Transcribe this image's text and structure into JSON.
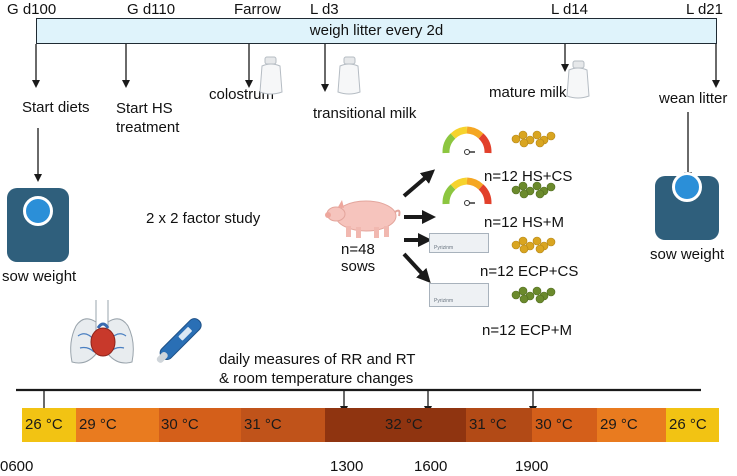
{
  "timeline_labels": {
    "g_d100": "G d100",
    "g_d110": "G d110",
    "farrow": "Farrow",
    "l_d3": "L d3",
    "l_d14": "L d14",
    "l_d21": "L d21"
  },
  "banner_text": "weigh litter every 2d",
  "events": {
    "start_diets": "Start diets",
    "start_hs": "Start HS\ntreatment",
    "colostrum": "colostrum",
    "transitional_milk": "transitional milk",
    "mature_milk": "mature milk",
    "wean_litter": "wean litter"
  },
  "sow_weight_left": "sow weight",
  "sow_weight_right": "sow weight",
  "study_label": "2 x 2 factor study",
  "sows_label": "n=48\nsows",
  "groups": [
    {
      "label": "n=12 HS+CS",
      "pellet_color": "#d9a520"
    },
    {
      "label": "n=12 HS+M",
      "pellet_color": "#6b8a2c"
    },
    {
      "label": "n=12 ECP+CS",
      "pellet_color": "#d9a520"
    },
    {
      "label": "n=12 ECP+M",
      "pellet_color": "#6b8a2c"
    }
  ],
  "device_text": "Pyrizinm",
  "daily_measures": "daily measures of RR and RT\n& room temperature changes",
  "temperature_segments": [
    {
      "label": "26 °C",
      "color": "#f2c313"
    },
    {
      "label": "29 °C",
      "color": "#e97b1f"
    },
    {
      "label": "30 °C",
      "color": "#d45f1a"
    },
    {
      "label": "31 °C",
      "color": "#c0531a"
    },
    {
      "label": "32 °C",
      "color": "#8f3410"
    },
    {
      "label": "31 °C",
      "color": "#b24a16"
    },
    {
      "label": "30 °C",
      "color": "#d45f1a"
    },
    {
      "label": "29 °C",
      "color": "#e97b1f"
    },
    {
      "label": "26 °C",
      "color": "#f2c313"
    }
  ],
  "times": [
    "0600",
    "1300",
    "1600",
    "1900"
  ],
  "colors": {
    "banner_bg": "#dff3fb",
    "scale_body": "#2f5f7c",
    "scale_dial": "#2b8fd8",
    "arrow": "#1a1a1a"
  }
}
